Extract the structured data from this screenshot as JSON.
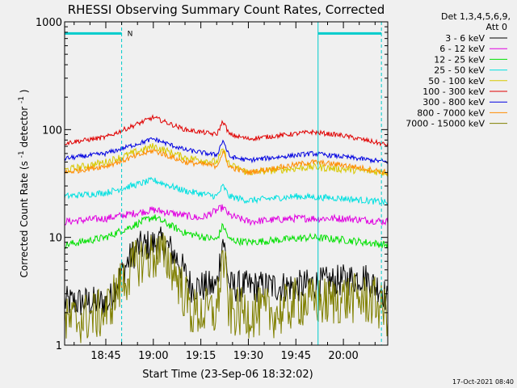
{
  "chart_data": {
    "type": "line",
    "title": "RHESSI Observing Summary Count Rates, Corrected",
    "xlabel": "Start Time (23-Sep-06 18:32:02)",
    "ylabel": "Corrected Count Rate (s",
    "ylabel_sup1": "-1",
    "ylabel_mid": " detector",
    "ylabel_sup2": "-1",
    "ylabel_end": ")",
    "yscale": "log",
    "ylim": [
      1,
      1000
    ],
    "ytick_labels": [
      "1",
      "10",
      "100",
      "1000"
    ],
    "ytick_values": [
      1,
      10,
      100,
      1000
    ],
    "xlim": [
      "18:32",
      "20:14"
    ],
    "xtick_labels": [
      "18:45",
      "19:00",
      "19:15",
      "19:30",
      "19:45",
      "20:00"
    ],
    "xtick_values": [
      "18:45",
      "19:00",
      "19:15",
      "19:30",
      "19:45",
      "20:00"
    ],
    "legend_header": [
      "Det 1,3,4,5,6,9,",
      "Att 0"
    ],
    "legend_position": "right",
    "annotation_N": "N",
    "timestamp": "17-Oct-2021 08:40",
    "series": [
      {
        "name": "3 - 6 keV",
        "color": "#000000",
        "x": [
          "18:32",
          "18:46",
          "18:48",
          "18:52",
          "18:55",
          "19:02",
          "19:05",
          "19:08",
          "19:12",
          "19:18",
          "19:20",
          "19:21",
          "19:22",
          "19:23",
          "19:24",
          "19:26",
          "19:30",
          "19:45",
          "20:00",
          "20:06",
          "20:08",
          "20:10",
          "20:12",
          "20:14"
        ],
        "y": [
          2.5,
          2.5,
          3.5,
          6,
          8,
          9,
          8,
          6,
          3.5,
          3.5,
          3.5,
          6,
          10,
          6,
          3.5,
          3.5,
          3.5,
          3.5,
          4,
          4.3,
          4,
          3.5,
          3.5,
          2.5
        ]
      },
      {
        "name": "6 - 12 keV",
        "color": "#e000e0",
        "x": [
          "18:32",
          "18:45",
          "19:00",
          "19:15",
          "19:22",
          "19:24",
          "19:30",
          "19:45",
          "20:00",
          "20:14"
        ],
        "y": [
          14,
          15,
          18,
          15,
          19,
          16,
          14,
          15,
          15,
          14
        ]
      },
      {
        "name": "12 - 25 keV",
        "color": "#00e000",
        "x": [
          "18:32",
          "18:45",
          "19:00",
          "19:10",
          "19:20",
          "19:22",
          "19:24",
          "19:30",
          "19:50",
          "20:00",
          "20:14"
        ],
        "y": [
          8.5,
          10,
          15.5,
          11,
          9.5,
          13,
          9.5,
          9,
          10,
          9.5,
          8.5
        ]
      },
      {
        "name": "25 - 50 keV",
        "color": "#00e0e0",
        "x": [
          "18:32",
          "18:45",
          "19:00",
          "19:10",
          "19:20",
          "19:22",
          "19:24",
          "19:30",
          "19:45",
          "20:00",
          "20:14"
        ],
        "y": [
          24,
          26,
          34,
          27,
          24,
          30,
          24,
          22,
          24,
          23,
          21
        ]
      },
      {
        "name": "50 - 100 keV",
        "color": "#d8c800",
        "x": [
          "18:32",
          "18:45",
          "19:00",
          "19:10",
          "19:20",
          "19:22",
          "19:24",
          "19:30",
          "19:50",
          "20:00",
          "20:14"
        ],
        "y": [
          42,
          50,
          70,
          55,
          50,
          65,
          47,
          40,
          45,
          43,
          40
        ]
      },
      {
        "name": "100 - 300 keV",
        "color": "#e00000",
        "x": [
          "18:32",
          "18:45",
          "19:00",
          "19:10",
          "19:20",
          "19:22",
          "19:24",
          "19:30",
          "19:50",
          "20:00",
          "20:14"
        ],
        "y": [
          75,
          85,
          130,
          100,
          90,
          120,
          90,
          82,
          95,
          88,
          72
        ]
      },
      {
        "name": "300 - 800 keV",
        "color": "#0000e0",
        "x": [
          "18:32",
          "18:45",
          "19:00",
          "19:10",
          "19:20",
          "19:22",
          "19:24",
          "19:30",
          "19:50",
          "20:00",
          "20:14"
        ],
        "y": [
          54,
          60,
          82,
          65,
          58,
          80,
          56,
          52,
          60,
          56,
          50
        ]
      },
      {
        "name": "800 - 7000 keV",
        "color": "#ff8c00",
        "x": [
          "18:32",
          "18:45",
          "19:00",
          "19:10",
          "19:20",
          "19:22",
          "19:24",
          "19:30",
          "19:50",
          "20:00",
          "20:14"
        ],
        "y": [
          40,
          46,
          64,
          50,
          46,
          62,
          45,
          40,
          50,
          47,
          40
        ]
      },
      {
        "name": "7000 - 15000 keV",
        "color": "#808000",
        "x": [
          "18:32",
          "18:45",
          "18:48",
          "18:52",
          "18:55",
          "19:02",
          "19:05",
          "19:08",
          "19:12",
          "19:20",
          "19:22",
          "19:24",
          "19:30",
          "19:40",
          "19:45",
          "19:55",
          "20:00",
          "20:05",
          "20:10",
          "20:14"
        ],
        "y": [
          1.6,
          2,
          3,
          4.5,
          6,
          7,
          6,
          4,
          2,
          2,
          7,
          2,
          2,
          2,
          2.5,
          2.5,
          2.7,
          2.7,
          2.5,
          2
        ]
      }
    ],
    "cyan_bars": [
      {
        "x_start": "18:32",
        "x_end": "18:50",
        "y": 780
      },
      {
        "x_start": "19:52",
        "x_end": "20:12",
        "y": 780
      }
    ],
    "vlines_dashed": [
      "18:50",
      "20:12"
    ],
    "vlines_solid": [
      "18:32",
      "19:52"
    ],
    "grid": false
  }
}
